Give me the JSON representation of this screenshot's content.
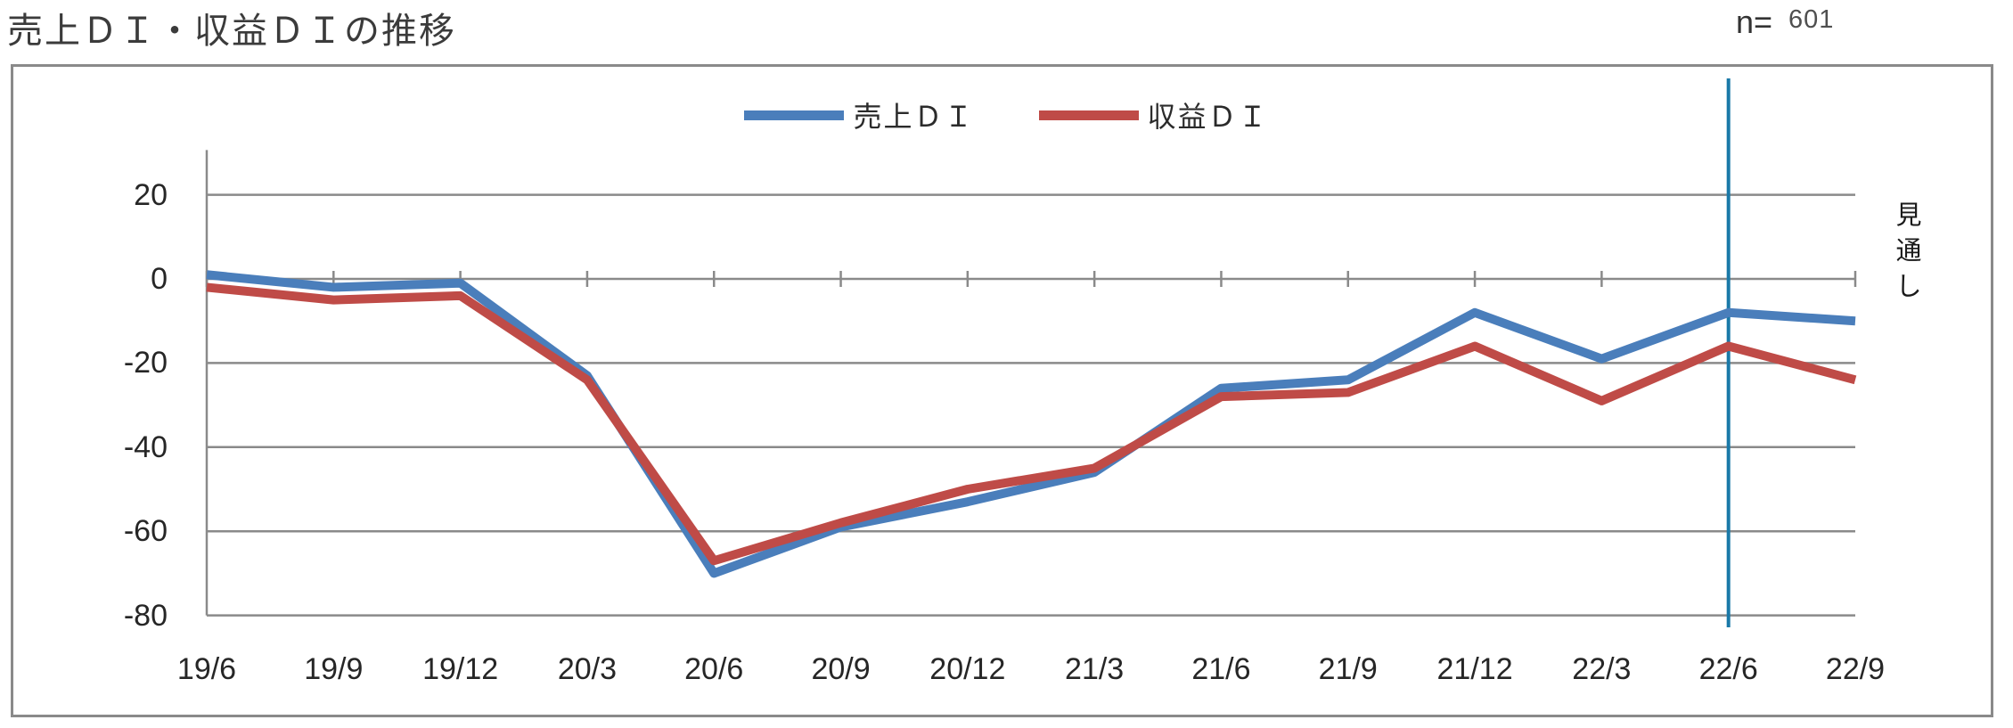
{
  "header": {
    "title": "売上ＤＩ・収益ＤＩの推移",
    "sample_label": "n=",
    "sample_value": "601"
  },
  "chart_data": {
    "type": "line",
    "categories": [
      "19/6",
      "19/9",
      "19/12",
      "20/3",
      "20/6",
      "20/9",
      "20/12",
      "21/3",
      "21/6",
      "21/9",
      "21/12",
      "22/3",
      "22/6",
      "22/9"
    ],
    "series": [
      {
        "name": "売上ＤＩ",
        "color": "#4a7ebb",
        "values": [
          1,
          -2,
          -1,
          -23,
          -70,
          -59,
          -53,
          -46,
          -26,
          -24,
          -8,
          -19,
          -8,
          -10
        ]
      },
      {
        "name": "収益ＤＩ",
        "color": "#bf4b47",
        "values": [
          -2,
          -5,
          -4,
          -24,
          -67,
          -58,
          -50,
          -45,
          -28,
          -27,
          -16,
          -29,
          -16,
          -24
        ]
      }
    ],
    "ylim": [
      -80,
      30
    ],
    "yticks": [
      20,
      0,
      -20,
      -40,
      -60,
      -80
    ],
    "grid": "horizontal",
    "legend_position": "top-center",
    "axis_color": "#8a8a8a",
    "text_color": "#262626",
    "annotations": {
      "forecast_label": "見通し",
      "forecast_line_at": "22/6",
      "forecast_line_color": "#1a79a8"
    }
  }
}
